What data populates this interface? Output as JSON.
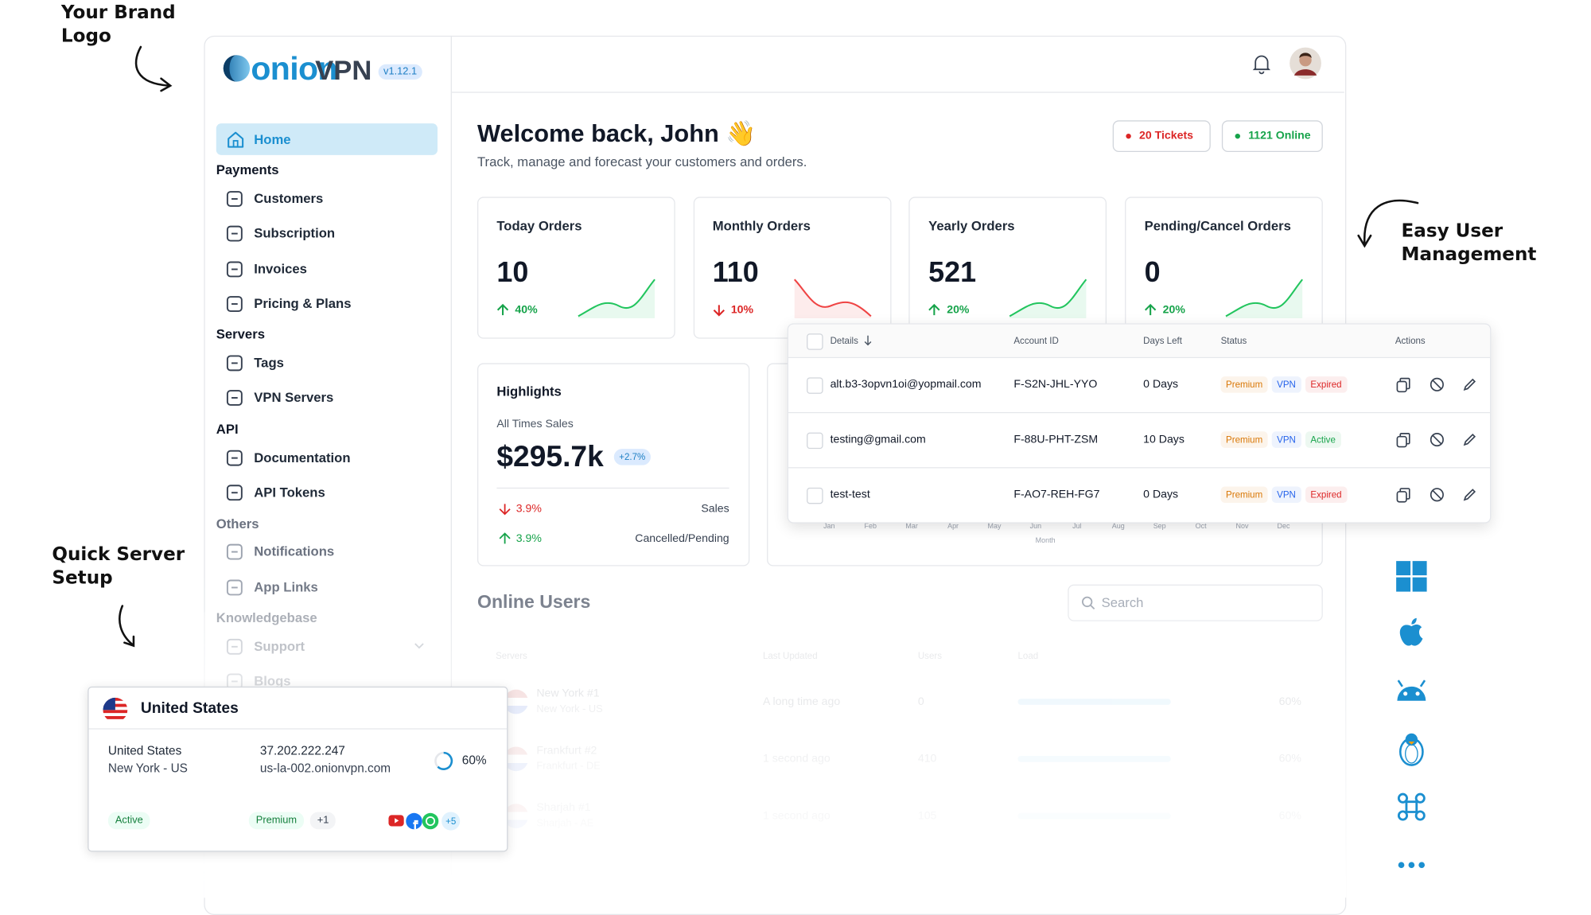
{
  "annotations": {
    "brand_logo": [
      "Your Brand",
      "Logo"
    ],
    "user_management": [
      "Easy User",
      "Management"
    ],
    "server_setup": [
      "Quick Server",
      "Setup"
    ]
  },
  "logo": {
    "primary": "onion",
    "secondary": "VPN",
    "version": "v1.12.1"
  },
  "sidebar": {
    "home": "Home",
    "sections": [
      {
        "title": "Payments",
        "items": [
          "Customers",
          "Subscription",
          "Invoices",
          "Pricing & Plans"
        ]
      },
      {
        "title": "Servers",
        "items": [
          "Tags",
          "VPN Servers"
        ]
      },
      {
        "title": "API",
        "items": [
          "Documentation",
          "API Tokens"
        ]
      },
      {
        "title": "Others",
        "items": [
          "Notifications",
          "App Links"
        ]
      },
      {
        "title": "Knowledgebase",
        "items": [
          "Support",
          "Blogs"
        ]
      }
    ]
  },
  "header": {
    "title": "Welcome back, John 👋",
    "subtitle": "Track, manage and forecast your customers and orders.",
    "badges": [
      {
        "label": "20 Tickets",
        "color": "#dc2626"
      },
      {
        "label": "1121 Online",
        "color": "#16a34a"
      }
    ]
  },
  "stats": [
    {
      "title": "Today Orders",
      "value": "10",
      "change": "40%",
      "trend": "up"
    },
    {
      "title": "Monthly Orders",
      "value": "110",
      "change": "10%",
      "trend": "down"
    },
    {
      "title": "Yearly Orders",
      "value": "521",
      "change": "20%",
      "trend": "up"
    },
    {
      "title": "Pending/Cancel Orders",
      "value": "0",
      "change": "20%",
      "trend": "up"
    }
  ],
  "highlights": {
    "title": "Highlights",
    "label": "All Times Sales",
    "value": "$295.7k",
    "delta": "+2.7%",
    "rows": [
      {
        "change": "3.9%",
        "trend": "down",
        "label": "Sales"
      },
      {
        "change": "3.9%",
        "trend": "up",
        "label": "Cancelled/Pending"
      }
    ]
  },
  "sales_chart": {
    "months": [
      "Jan",
      "Feb",
      "Mar",
      "Apr",
      "May",
      "Jun",
      "Jul",
      "Aug",
      "Sep",
      "Oct",
      "Nov",
      "Dec"
    ],
    "axis_label": "Month"
  },
  "users_table": {
    "columns": [
      "Details",
      "Account ID",
      "Days Left",
      "Status",
      "Actions"
    ],
    "rows": [
      {
        "details": "alt.b3-3opvn1oi@yopmail.com",
        "account_id": "F-S2N-JHL-YYO",
        "days_left": "0 Days",
        "status": [
          {
            "label": "Premium",
            "color": "#d97706"
          },
          {
            "label": "VPN",
            "color": "#2563eb"
          },
          {
            "label": "Expired",
            "color": "#dc2626"
          }
        ]
      },
      {
        "details": "testing@gmail.com",
        "account_id": "F-88U-PHT-ZSM",
        "days_left": "10 Days",
        "status": [
          {
            "label": "Premium",
            "color": "#d97706"
          },
          {
            "label": "VPN",
            "color": "#2563eb"
          },
          {
            "label": "Active",
            "color": "#16a34a"
          }
        ]
      },
      {
        "details": "test-test",
        "account_id": "F-AO7-REH-FG7",
        "days_left": "0 Days",
        "status": [
          {
            "label": "Premium",
            "color": "#d97706"
          },
          {
            "label": "VPN",
            "color": "#2563eb"
          },
          {
            "label": "Expired",
            "color": "#dc2626"
          }
        ]
      }
    ]
  },
  "online_users": {
    "title": "Online Users",
    "search": "Search",
    "columns": [
      "Servers",
      "Last Updated",
      "Users",
      "Load"
    ],
    "rows": [
      {
        "name": "New York #1",
        "location": "New York - US",
        "updated": "A long time ago",
        "users": "0",
        "load": "60%"
      },
      {
        "name": "Frankfurt #2",
        "location": "Frankfurt - DE",
        "updated": "1 second ago",
        "users": "410",
        "load": "60%"
      },
      {
        "name": "Sharjah #1",
        "location": "Sharjah - AE",
        "updated": "1 second ago",
        "users": "105",
        "load": "60%"
      }
    ]
  },
  "server_card": {
    "title": "United States",
    "country": "United States",
    "city": "New York - US",
    "ip": "37.202.222.247",
    "host": "us-la-002.onionvpn.com",
    "load": "60%",
    "tags": [
      "Active",
      "Premium",
      "+1"
    ],
    "apps_more": "+5"
  }
}
